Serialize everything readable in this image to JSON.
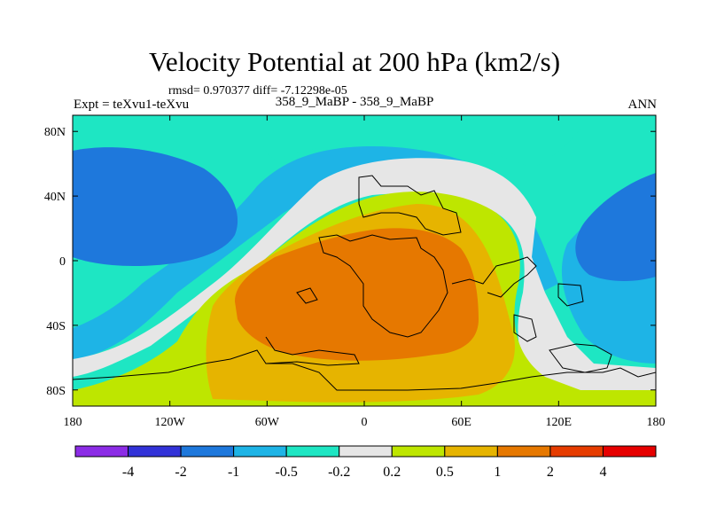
{
  "title": "Velocity Potential at 200 hPa (km2/s)",
  "stats_line": "rmsd= 0.970377 diff= -7.12298e-05",
  "left_label": "Expt = teXvu1-teXvu",
  "center_label": "358_9_MaBP - 358_9_MaBP",
  "right_label": "ANN",
  "chart_data": {
    "type": "heatmap",
    "variable": "Velocity Potential at 200 hPa",
    "units": "km2/s",
    "projection": "cylindrical equidistant",
    "xlim": [
      -180,
      180
    ],
    "ylim": [
      -90,
      90
    ],
    "x_ticks": [
      {
        "value": -180,
        "label": "180"
      },
      {
        "value": -120,
        "label": "120W"
      },
      {
        "value": -60,
        "label": "60W"
      },
      {
        "value": 0,
        "label": "0"
      },
      {
        "value": 60,
        "label": "60E"
      },
      {
        "value": 120,
        "label": "120E"
      },
      {
        "value": 180,
        "label": "180"
      }
    ],
    "y_ticks": [
      {
        "value": 80,
        "label": "80N"
      },
      {
        "value": 40,
        "label": "40N"
      },
      {
        "value": 0,
        "label": "0"
      },
      {
        "value": -40,
        "label": "40S"
      },
      {
        "value": -80,
        "label": "80S"
      }
    ],
    "contour_levels": [
      -4,
      -2,
      -1,
      -0.5,
      -0.2,
      0.2,
      0.5,
      1,
      2,
      4
    ],
    "colorbar": {
      "labels": [
        "-4",
        "-2",
        "-1",
        "-0.5",
        "-0.2",
        "0.2",
        "0.5",
        "1",
        "2",
        "4"
      ],
      "colors": [
        "#8c2ce6",
        "#3232d8",
        "#1e78dc",
        "#1eb4e6",
        "#1ee6c3",
        "#e6e6e6",
        "#bee600",
        "#e6b400",
        "#e67800",
        "#e63c00",
        "#e60000"
      ]
    },
    "regions": [
      {
        "name": "eastern-hemisphere-upper-divergence-center",
        "value_range": "2 to 4",
        "center": [
          -10,
          -20
        ]
      },
      {
        "name": "western-pacific-negative-center",
        "value_range": "-2 to -1",
        "center": [
          -155,
          35
        ]
      },
      {
        "name": "eastern-pacific-negative-center",
        "value_range": "-2 to -1",
        "center": [
          170,
          10
        ]
      }
    ]
  }
}
